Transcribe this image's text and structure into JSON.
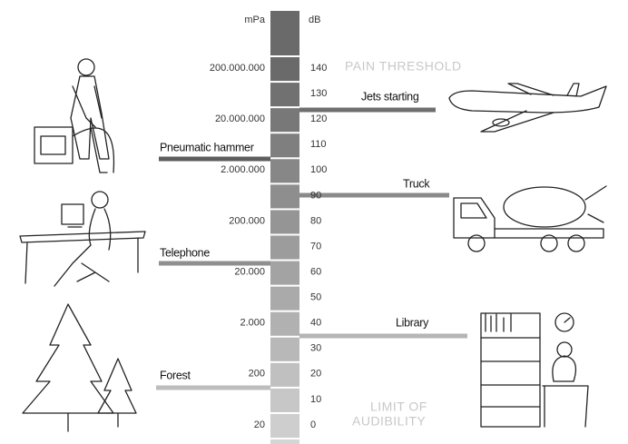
{
  "header": {
    "pressure_unit": "mPa",
    "level_unit": "dB"
  },
  "scale": {
    "pressure": [
      "200.000.000",
      "20.000.000",
      "2.000.000",
      "200.000",
      "20.000",
      "2.000",
      "200",
      "20"
    ],
    "decibels": [
      140,
      130,
      120,
      110,
      100,
      90,
      80,
      70,
      60,
      50,
      40,
      30,
      20,
      10,
      0
    ]
  },
  "annotations": {
    "upper": "PAIN THRESHOLD",
    "lower": [
      "LIMIT OF",
      "AUDIBILITY"
    ]
  },
  "sources": [
    {
      "label": "Jets starting"
    },
    {
      "label": "Pneumatic hammer"
    },
    {
      "label": "Truck"
    },
    {
      "label": "Telephone"
    },
    {
      "label": "Library"
    },
    {
      "label": "Forest"
    }
  ]
}
